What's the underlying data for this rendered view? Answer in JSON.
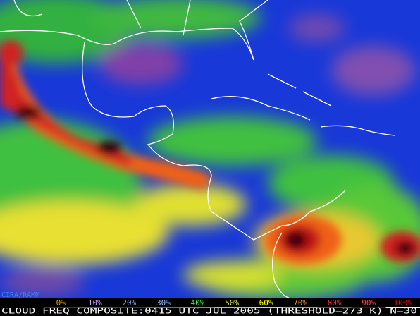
{
  "source": "CIRA/RAMM",
  "colorbar": {
    "labels": [
      "0%",
      "10%",
      "20%",
      "30%",
      "40%",
      "50%",
      "60%",
      "70%",
      "80%",
      "90%",
      "100%"
    ]
  },
  "caption": "CLOUD FREQ COMPOSITE:0415 UTC JUL 2005 (THRESHOLD=273 K) N=30"
}
